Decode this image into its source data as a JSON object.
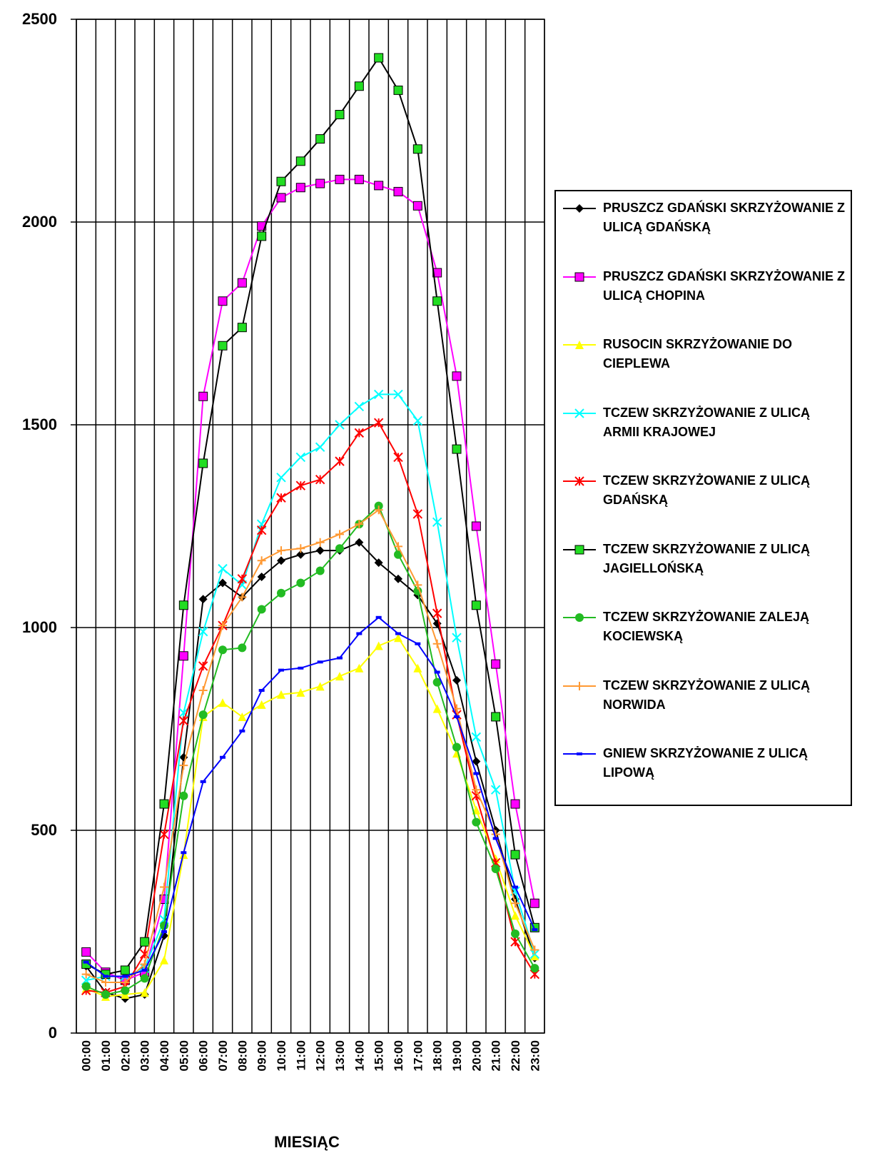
{
  "chart_data": {
    "type": "line",
    "xlabel": "MIESIĄC",
    "categories": [
      "00:00",
      "01:00",
      "02:00",
      "03:00",
      "04:00",
      "05:00",
      "06:00",
      "07:00",
      "08:00",
      "09:00",
      "10:00",
      "11:00",
      "12:00",
      "13:00",
      "14:00",
      "15:00",
      "16:00",
      "17:00",
      "18:00",
      "19:00",
      "20:00",
      "21:00",
      "22:00",
      "23:00"
    ],
    "ylim": [
      0,
      2500
    ],
    "yticks": [
      0,
      500,
      1000,
      1500,
      2000,
      2500
    ],
    "grid": true,
    "legend": "right",
    "series": [
      {
        "name": "PRUSZCZ GDAŃSKI SKRZYŻOWANIE Z ULICĄ GDAŃSKĄ",
        "color": "#000000",
        "marker": "diamond",
        "marker_color": "#000000",
        "values": [
          165,
          100,
          85,
          95,
          240,
          680,
          1070,
          1110,
          1075,
          1125,
          1165,
          1180,
          1190,
          1190,
          1210,
          1160,
          1120,
          1080,
          1010,
          870,
          670,
          500,
          330,
          185
        ]
      },
      {
        "name": "PRUSZCZ GDAŃSKI SKRZYŻOWANIE Z ULICĄ CHOPINA",
        "color": "#ff00ff",
        "marker": "square",
        "marker_color": "#ff00ff",
        "values": [
          200,
          150,
          130,
          150,
          330,
          930,
          1570,
          1805,
          1850,
          1990,
          2060,
          2085,
          2095,
          2105,
          2105,
          2090,
          2075,
          2040,
          1875,
          1620,
          1250,
          910,
          565,
          320
        ]
      },
      {
        "name": "RUSOCIN SKRZYŻOWANIE DO CIEPLEWA",
        "color": "#ffff00",
        "marker": "triangle",
        "marker_color": "#ffff00",
        "values": [
          110,
          90,
          95,
          100,
          180,
          440,
          780,
          815,
          780,
          810,
          835,
          840,
          855,
          880,
          900,
          955,
          975,
          900,
          800,
          690,
          550,
          430,
          290,
          190
        ]
      },
      {
        "name": "TCZEW SKRZYŻOWANIE Z ULICĄ ARMII KRAJOWEJ",
        "color": "#00ffff",
        "marker": "x",
        "marker_color": "#00ffff",
        "values": [
          130,
          140,
          140,
          160,
          280,
          790,
          990,
          1145,
          1105,
          1255,
          1370,
          1420,
          1445,
          1500,
          1545,
          1575,
          1575,
          1510,
          1260,
          975,
          730,
          600,
          350,
          195
        ]
      },
      {
        "name": "TCZEW SKRZYŻOWANIE Z ULICĄ GDAŃSKĄ",
        "color": "#ff0000",
        "marker": "asterisk",
        "marker_color": "#ff0000",
        "values": [
          105,
          100,
          115,
          195,
          490,
          770,
          905,
          1005,
          1120,
          1240,
          1320,
          1350,
          1365,
          1410,
          1480,
          1505,
          1420,
          1280,
          1035,
          785,
          585,
          420,
          225,
          145
        ]
      },
      {
        "name": "TCZEW SKRZYŻOWANIE Z ULICĄ JAGIELLOŃSKĄ",
        "color": "#000000",
        "marker": "square",
        "marker_color": "#22dd22",
        "values": [
          170,
          145,
          155,
          225,
          565,
          1055,
          1405,
          1695,
          1740,
          1965,
          2100,
          2150,
          2205,
          2265,
          2335,
          2405,
          2325,
          2180,
          1805,
          1440,
          1055,
          780,
          440,
          260
        ]
      },
      {
        "name": "TCZEW SKRZYŻOWANIE ZALEJĄ KOCIEWSKĄ",
        "color": "#22bb22",
        "marker": "circle",
        "marker_color": "#22bb22",
        "values": [
          115,
          95,
          105,
          135,
          265,
          585,
          785,
          945,
          950,
          1045,
          1085,
          1110,
          1140,
          1195,
          1255,
          1300,
          1180,
          1090,
          865,
          705,
          520,
          405,
          245,
          160
        ]
      },
      {
        "name": "TCZEW SKRZYŻOWANIE Z ULICĄ NORWIDA",
        "color": "#ff9933",
        "marker": "plus",
        "marker_color": "#ff9933",
        "values": [
          145,
          125,
          125,
          170,
          360,
          660,
          845,
          1005,
          1075,
          1165,
          1190,
          1195,
          1210,
          1230,
          1255,
          1290,
          1200,
          1105,
          960,
          800,
          600,
          490,
          320,
          205
        ]
      },
      {
        "name": "GNIEW SKRZYŻOWANIE Z ULICĄ LIPOWĄ",
        "color": "#0000ff",
        "marker": "dash",
        "marker_color": "#0000ff",
        "values": [
          175,
          140,
          140,
          155,
          250,
          445,
          620,
          680,
          745,
          845,
          895,
          900,
          915,
          925,
          985,
          1025,
          985,
          960,
          890,
          780,
          640,
          480,
          360,
          255
        ]
      }
    ]
  }
}
